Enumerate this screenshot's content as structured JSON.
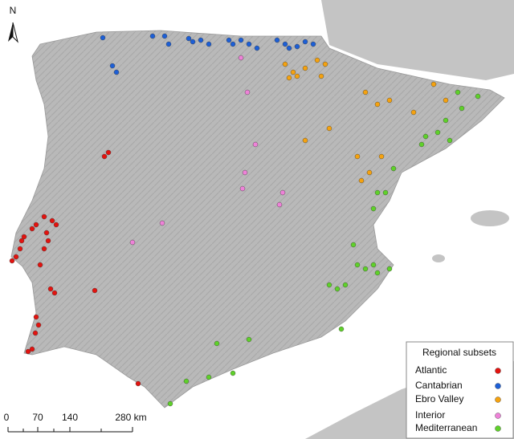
{
  "north": "N",
  "scale_bar": {
    "labels": [
      "0",
      "70",
      "140",
      "280 km"
    ]
  },
  "legend": {
    "title": "Regional subsets",
    "items": [
      {
        "label": "Atlantic",
        "color": "#e3130f"
      },
      {
        "label": "Cantabrian",
        "color": "#1d5fd6"
      },
      {
        "label": "Ebro Valley",
        "color": "#f5a20f"
      },
      {
        "label": "Interior",
        "color": "#ee82d8"
      },
      {
        "label": "Mediterranean",
        "color": "#5fd12a"
      }
    ]
  }
}
